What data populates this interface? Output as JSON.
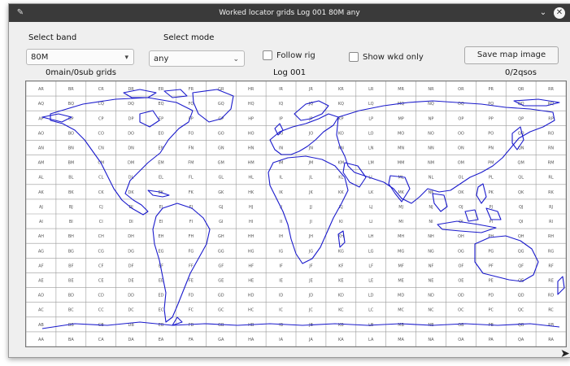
{
  "window": {
    "title": "Worked locator grids Log 001 80M any"
  },
  "controls": {
    "band_label": "Select band",
    "band_value": "80M",
    "mode_label": "Select mode",
    "mode_value": "any",
    "follow_rig_label": "Follow rig",
    "follow_rig_checked": false,
    "show_wkd_only_label": "Show wkd only",
    "show_wkd_only_checked": false,
    "save_button_label": "Save map image"
  },
  "status": {
    "grid_count": "0main/0sub grids",
    "log_name": "Log 001",
    "qso_count": "0/2qsos"
  },
  "map": {
    "columns": [
      "A",
      "B",
      "C",
      "D",
      "E",
      "F",
      "G",
      "H",
      "I",
      "J",
      "K",
      "L",
      "M",
      "N",
      "O",
      "P",
      "Q",
      "R"
    ],
    "rows": [
      "R",
      "Q",
      "P",
      "O",
      "N",
      "M",
      "L",
      "K",
      "J",
      "I",
      "H",
      "G",
      "F",
      "E",
      "D",
      "C",
      "B",
      "A"
    ],
    "coastline_color": "#1a1acc",
    "grid_line_color": "#9a9a9a"
  }
}
